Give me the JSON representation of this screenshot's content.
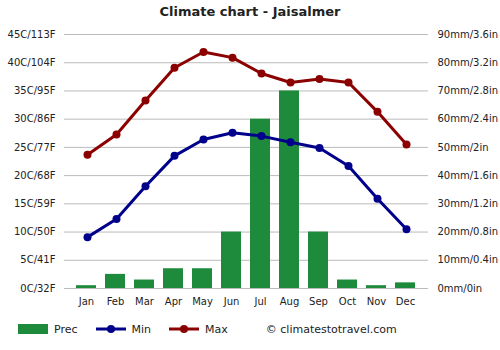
{
  "chart_data": {
    "type": "combo",
    "title": "Climate chart - Jaisalmer",
    "annotation": "© climatestotravel.com",
    "categories": [
      "Jan",
      "Feb",
      "Mar",
      "Apr",
      "May",
      "Jun",
      "Jul",
      "Aug",
      "Sep",
      "Oct",
      "Nov",
      "Dec"
    ],
    "series": [
      {
        "name": "Prec",
        "type": "bar",
        "axis": "y2",
        "color": "#1e8b3c",
        "values": [
          1,
          5,
          3,
          7,
          7,
          20,
          60,
          70,
          20,
          3,
          1,
          2
        ]
      },
      {
        "name": "Min",
        "type": "line",
        "marker": "circle",
        "color": "#00008b",
        "values": [
          9.1,
          12.3,
          18.1,
          23.5,
          26.4,
          27.6,
          27.0,
          25.9,
          24.9,
          21.7,
          15.9,
          10.5
        ]
      },
      {
        "name": "Max",
        "type": "line",
        "marker": "circle",
        "color": "#8b0000",
        "values": [
          23.7,
          27.3,
          33.3,
          39.1,
          41.9,
          40.9,
          38.1,
          36.5,
          37.1,
          36.5,
          31.3,
          25.5
        ]
      }
    ],
    "ylim": [
      0,
      45
    ],
    "yticks": [
      {
        "value": 0,
        "label": "0C/32F"
      },
      {
        "value": 5,
        "label": "5C/41F"
      },
      {
        "value": 10,
        "label": "10C/50F"
      },
      {
        "value": 15,
        "label": "15C/59F"
      },
      {
        "value": 20,
        "label": "20C/68F"
      },
      {
        "value": 25,
        "label": "25C/77F"
      },
      {
        "value": 30,
        "label": "30C/86F"
      },
      {
        "value": 35,
        "label": "35C/95F"
      },
      {
        "value": 40,
        "label": "40C/104F"
      },
      {
        "value": 45,
        "label": "45C/113F"
      }
    ],
    "y2lim": [
      0,
      90
    ],
    "y2ticks": [
      {
        "value": 0,
        "label": "0mm/0in"
      },
      {
        "value": 10,
        "label": "10mm/0.4in"
      },
      {
        "value": 20,
        "label": "20mm/0.8in"
      },
      {
        "value": 30,
        "label": "30mm/1.2in"
      },
      {
        "value": 40,
        "label": "40mm/1.6in"
      },
      {
        "value": 50,
        "label": "50mm/2in"
      },
      {
        "value": 60,
        "label": "60mm/2.4in"
      },
      {
        "value": 70,
        "label": "70mm/2.8in"
      },
      {
        "value": 80,
        "label": "80mm/3.2in"
      },
      {
        "value": 90,
        "label": "90mm/3.6in"
      }
    ],
    "grid": true,
    "legend": "bottom"
  }
}
